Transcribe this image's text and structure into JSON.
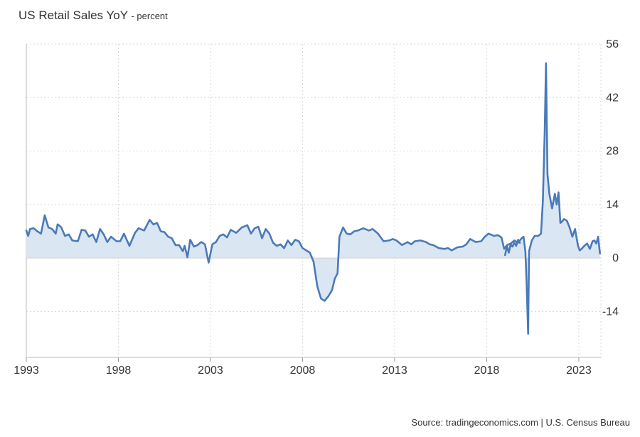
{
  "chart_data": {
    "type": "area",
    "title": "US Retail Sales YoY",
    "unit": "- percent",
    "source": "Source: tradingeconomics.com | U.S. Census Bureau",
    "x_ticks": [
      "1993",
      "1998",
      "2003",
      "2008",
      "2013",
      "2018",
      "2023"
    ],
    "y_ticks": [
      56,
      42,
      28,
      14,
      0,
      -14
    ],
    "xlim": [
      1993.0,
      2024.2
    ],
    "ylim": [
      -26,
      56
    ],
    "grid": true,
    "colors": {
      "line": "#4a7ab8",
      "fill": "#dbe6f3",
      "grid": "#d9d9d9"
    },
    "series": [
      {
        "x": [
          1993.0,
          1993.1,
          1993.2,
          1993.4,
          1993.6,
          1993.8,
          1994.0,
          1994.2,
          1994.4,
          1994.6,
          1994.7,
          1994.8,
          1994.9,
          1995.1,
          1995.3,
          1995.5,
          1995.8,
          1996.0,
          1996.2,
          1996.4,
          1996.6,
          1996.8,
          1997.0,
          1997.2,
          1997.4,
          1997.6,
          1997.9,
          1998.1,
          1998.3,
          1998.6,
          1998.9,
          1999.1,
          1999.4,
          1999.7,
          1999.9,
          2000.1,
          2000.3,
          2000.5,
          2000.7,
          2000.9,
          2001.1,
          2001.3,
          2001.5,
          2001.6,
          2001.75,
          2001.9,
          2002.1,
          2002.3,
          2002.5,
          2002.7,
          2002.9,
          2003.1,
          2003.3,
          2003.5,
          2003.7,
          2003.9,
          2004.1,
          2004.4,
          2004.7,
          2005.0,
          2005.2,
          2005.4,
          2005.6,
          2005.8,
          2006.0,
          2006.2,
          2006.4,
          2006.6,
          2006.8,
          2007.0,
          2007.2,
          2007.4,
          2007.6,
          2007.8,
          2008.0,
          2008.2,
          2008.4,
          2008.6,
          2008.8,
          2009.0,
          2009.2,
          2009.4,
          2009.6,
          2009.75,
          2009.9,
          2010.0,
          2010.2,
          2010.4,
          2010.6,
          2010.8,
          2011.0,
          2011.3,
          2011.6,
          2011.8,
          2012.1,
          2012.4,
          2012.7,
          2012.9,
          2013.1,
          2013.4,
          2013.7,
          2013.9,
          2014.1,
          2014.4,
          2014.7,
          2014.9,
          2015.1,
          2015.4,
          2015.7,
          2015.9,
          2016.1,
          2016.4,
          2016.7,
          2016.9,
          2017.1,
          2017.4,
          2017.7,
          2017.9,
          2018.1,
          2018.4,
          2018.6,
          2018.8,
          2018.95,
          2019.1,
          2019.3,
          2019.5,
          2019.7,
          2019.9,
          2020.0,
          2020.1,
          2020.17,
          2020.25,
          2020.3,
          2020.45,
          2020.6,
          2020.8,
          2020.95,
          2021.05,
          2021.15,
          2021.22,
          2021.3,
          2021.4,
          2021.55,
          2021.7,
          2021.8,
          2021.9,
          2022.0,
          2022.1,
          2022.2,
          2022.35,
          2022.5,
          2022.65,
          2022.8,
          2022.95,
          2023.05,
          2023.15,
          2023.3,
          2023.45,
          2023.6,
          2023.75,
          2023.85,
          2023.95,
          2024.05,
          2024.15
        ],
        "values": [
          7.2,
          5.8,
          7.6,
          7.8,
          7.0,
          6.4,
          11.2,
          8.0,
          7.6,
          6.4,
          8.8,
          8.5,
          8.0,
          5.8,
          6.2,
          4.6,
          4.4,
          7.4,
          7.2,
          5.6,
          6.2,
          4.2,
          7.6,
          6.2,
          4.2,
          5.6,
          4.4,
          4.4,
          6.4,
          3.2,
          6.6,
          7.8,
          7.2,
          10.0,
          8.8,
          9.2,
          7.0,
          6.8,
          5.6,
          5.2,
          3.4,
          3.4,
          1.8,
          3.2,
          0.2,
          4.8,
          3.0,
          3.4,
          4.2,
          3.6,
          -1.2,
          3.6,
          4.2,
          5.8,
          6.2,
          5.4,
          7.4,
          6.6,
          8.0,
          8.6,
          6.4,
          7.8,
          8.2,
          5.2,
          7.6,
          6.4,
          4.0,
          3.2,
          3.6,
          2.6,
          4.6,
          3.4,
          4.8,
          4.4,
          2.6,
          2.0,
          1.4,
          -1.0,
          -7.4,
          -10.6,
          -11.2,
          -10.0,
          -8.4,
          -5.4,
          -4.0,
          5.6,
          8.0,
          6.4,
          6.2,
          7.0,
          7.2,
          7.8,
          7.2,
          7.6,
          6.4,
          4.4,
          4.6,
          5.0,
          4.6,
          3.4,
          4.2,
          3.6,
          4.4,
          4.6,
          4.2,
          3.6,
          3.4,
          2.6,
          2.4,
          2.6,
          2.0,
          2.8,
          3.0,
          3.6,
          5.0,
          4.2,
          4.4,
          5.6,
          6.4,
          5.8,
          6.0,
          5.4,
          2.4,
          3.4,
          3.8,
          4.6,
          4.0,
          5.2,
          5.6,
          1.8,
          -7.0,
          -19.8,
          1.8,
          4.6,
          5.8,
          5.8,
          6.4,
          15.0,
          33.0,
          51.0,
          22.0,
          16.8,
          13.0,
          16.8,
          14.0,
          17.2,
          9.2,
          9.6,
          10.2,
          9.8,
          8.0,
          5.6,
          7.6,
          3.4,
          2.0,
          2.4,
          3.2,
          3.8,
          2.4,
          4.4,
          4.6,
          3.8,
          5.6,
          1.2
        ]
      },
      {
        "x": [
          2019.0,
          2019.1,
          2019.2,
          2019.3,
          2019.4,
          2019.5,
          2019.6,
          2019.7,
          2019.8
        ],
        "values": [
          0.8,
          3.0,
          1.4,
          3.6,
          3.0,
          4.0,
          3.2,
          4.8,
          4.0
        ]
      }
    ]
  }
}
